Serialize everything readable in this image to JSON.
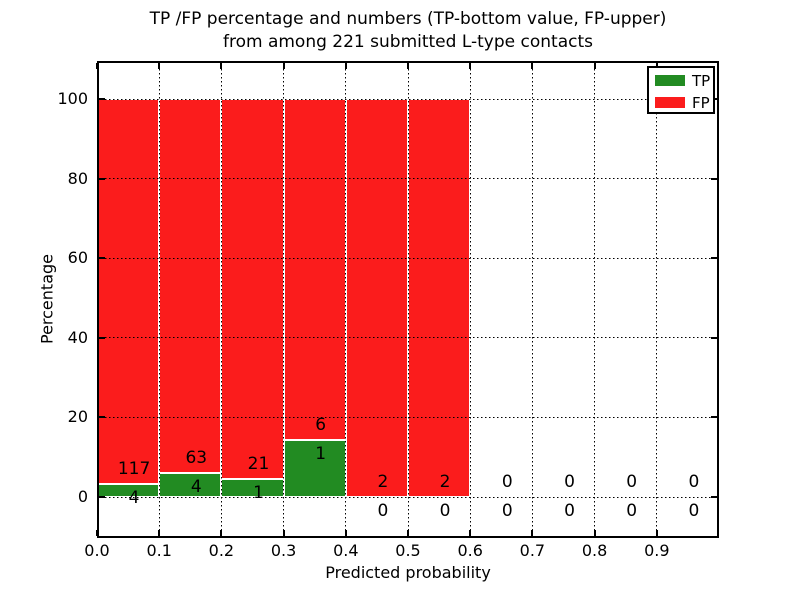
{
  "chart_data": {
    "type": "bar",
    "stacked": true,
    "normalized_per_bin": true,
    "title": "TP /FP percentage and numbers (TP-bottom value, FP-upper)",
    "subtitle": "from among 221 submitted L-type contacts",
    "xlabel": "Predicted probability",
    "ylabel": "Percentage",
    "x_tick_labels": [
      "0.0",
      "0.1",
      "0.2",
      "0.3",
      "0.4",
      "0.5",
      "0.6",
      "0.7",
      "0.8",
      "0.9"
    ],
    "y_tick_values": [
      0,
      20,
      40,
      60,
      80,
      100
    ],
    "y_tick_labels": [
      "0",
      "20",
      "40",
      "60",
      "80",
      "100"
    ],
    "xlim": [
      0.0,
      1.0
    ],
    "ylim": [
      -10,
      109
    ],
    "grid": {
      "visible": true,
      "style": "dotted",
      "color": "#000000"
    },
    "legend": {
      "position": "upper right",
      "entries": [
        {
          "label": "TP",
          "color": "#228b22"
        },
        {
          "label": "FP",
          "color": "#fb1c1c"
        }
      ]
    },
    "total_submitted": "221",
    "bins": [
      {
        "x_range": [
          0.0,
          0.1
        ],
        "tp_count": "4",
        "fp_count": "117",
        "tp_pct": 3.31,
        "fp_pct": 96.69,
        "has_bar": true
      },
      {
        "x_range": [
          0.1,
          0.2
        ],
        "tp_count": "4",
        "fp_count": "63",
        "tp_pct": 5.97,
        "fp_pct": 94.03,
        "has_bar": true
      },
      {
        "x_range": [
          0.2,
          0.3
        ],
        "tp_count": "1",
        "fp_count": "21",
        "tp_pct": 4.55,
        "fp_pct": 95.45,
        "has_bar": true
      },
      {
        "x_range": [
          0.3,
          0.4
        ],
        "tp_count": "1",
        "fp_count": "6",
        "tp_pct": 14.29,
        "fp_pct": 85.71,
        "has_bar": true
      },
      {
        "x_range": [
          0.4,
          0.5
        ],
        "tp_count": "0",
        "fp_count": "2",
        "tp_pct": 0,
        "fp_pct": 100,
        "has_bar": true
      },
      {
        "x_range": [
          0.5,
          0.6
        ],
        "tp_count": "0",
        "fp_count": "2",
        "tp_pct": 0,
        "fp_pct": 100,
        "has_bar": true
      },
      {
        "x_range": [
          0.6,
          0.7
        ],
        "tp_count": "0",
        "fp_count": "0",
        "tp_pct": 0,
        "fp_pct": 0,
        "has_bar": false
      },
      {
        "x_range": [
          0.7,
          0.8
        ],
        "tp_count": "0",
        "fp_count": "0",
        "tp_pct": 0,
        "fp_pct": 0,
        "has_bar": false
      },
      {
        "x_range": [
          0.8,
          0.9
        ],
        "tp_count": "0",
        "fp_count": "0",
        "tp_pct": 0,
        "fp_pct": 0,
        "has_bar": false
      },
      {
        "x_range": [
          0.9,
          1.0
        ],
        "tp_count": "0",
        "fp_count": "0",
        "tp_pct": 0,
        "fp_pct": 0,
        "has_bar": false
      }
    ],
    "colors": {
      "tp": "#228b22",
      "fp": "#fb1c1c",
      "bar_edge": "#ffffff",
      "axis": "#000000",
      "text": "#000000",
      "background": "#ffffff"
    }
  }
}
